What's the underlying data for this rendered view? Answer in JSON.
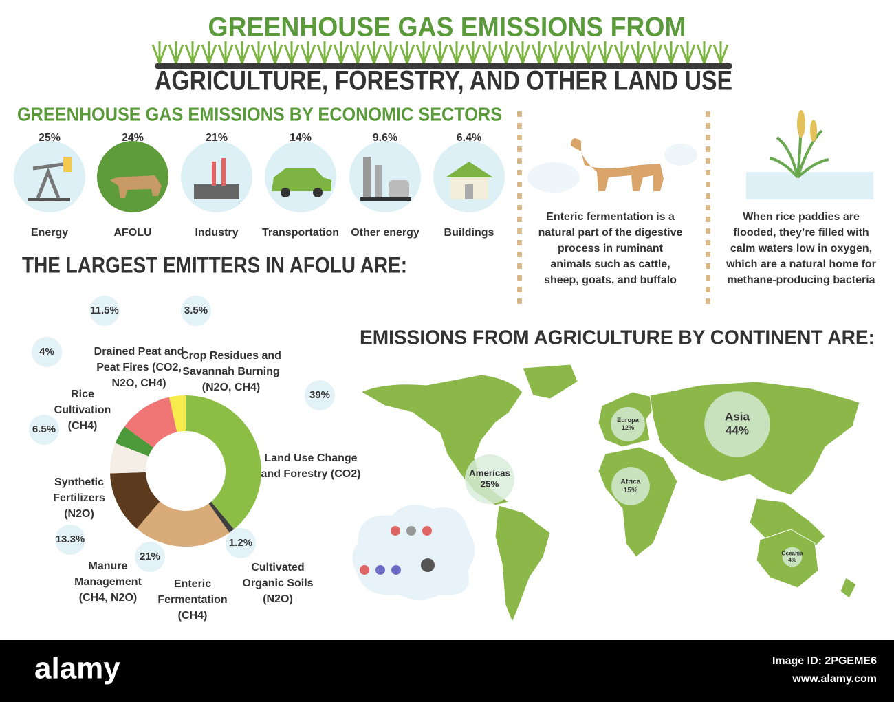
{
  "header": {
    "line1": "GREENHOUSE GAS EMISSIONS FROM",
    "line2": "AGRICULTURE, FORESTRY, AND OTHER LAND USE"
  },
  "sectors": {
    "title": "GREENHOUSE GAS EMISSIONS BY ECONOMIC SECTORS",
    "items": [
      {
        "share": "25%",
        "name": "Energy"
      },
      {
        "share": "24%",
        "name": "AFOLU"
      },
      {
        "share": "21%",
        "name": "Industry"
      },
      {
        "share": "14%",
        "name": "Transportation"
      },
      {
        "share": "9.6%",
        "name": "Other energy"
      },
      {
        "share": "6.4%",
        "name": "Buildings"
      }
    ]
  },
  "notes": [
    "Enteric fermentation is a natural part of the digestive process in ruminant animals such as cattle, sheep, goats, and buffalo",
    "When rice paddies are flooded, they’re filled with calm waters low in oxygen, which are a natural home for methane-producing bacteria"
  ],
  "chart_data": [
    {
      "type": "donut",
      "title": "THE LARGEST EMITTERS IN AFOLU ARE:",
      "categories": [
        "Land Use Change and Forestry (CO2)",
        "Cultivated Organic Soils (N2O)",
        "Enteric Fermentation (CH4)",
        "Manure Management (CH4, N2O)",
        "Synthetic Fertilizers (N2O)",
        "Rice Cultivation (CH4)",
        "Drained Peat and Peat Fires (CO2, N2O, CH4)",
        "Crop Residues and Savannah Burning (N2O, CH4)"
      ],
      "values": [
        39,
        1.2,
        21,
        13.3,
        6.5,
        4,
        11.5,
        3.5
      ],
      "value_labels": [
        "39%",
        "1.2%",
        "21%",
        "13.3%",
        "6.5%",
        "4%",
        "11.5%",
        "3.5%"
      ],
      "colors": [
        "#8cbd45",
        "#3f3f3f",
        "#d8ab78",
        "#5b3a1e",
        "#f4eee6",
        "#4c9a3a",
        "#f07575",
        "#f6ea4d"
      ]
    },
    {
      "type": "bubble",
      "title": "EMISSIONS FROM AGRICULTURE BY CONTINENT ARE:",
      "categories": [
        "Asia",
        "Europa",
        "Americas",
        "Africa",
        "Oceania"
      ],
      "values": [
        44,
        12,
        25,
        15,
        4
      ],
      "value_labels": [
        "44%",
        "12%",
        "25%",
        "15%",
        "4%"
      ],
      "color": "#d7ecd9"
    }
  ],
  "footer": {
    "brand": "alamy",
    "image_id": "Image ID: 2PGEME6",
    "site": "www.alamy.com"
  }
}
